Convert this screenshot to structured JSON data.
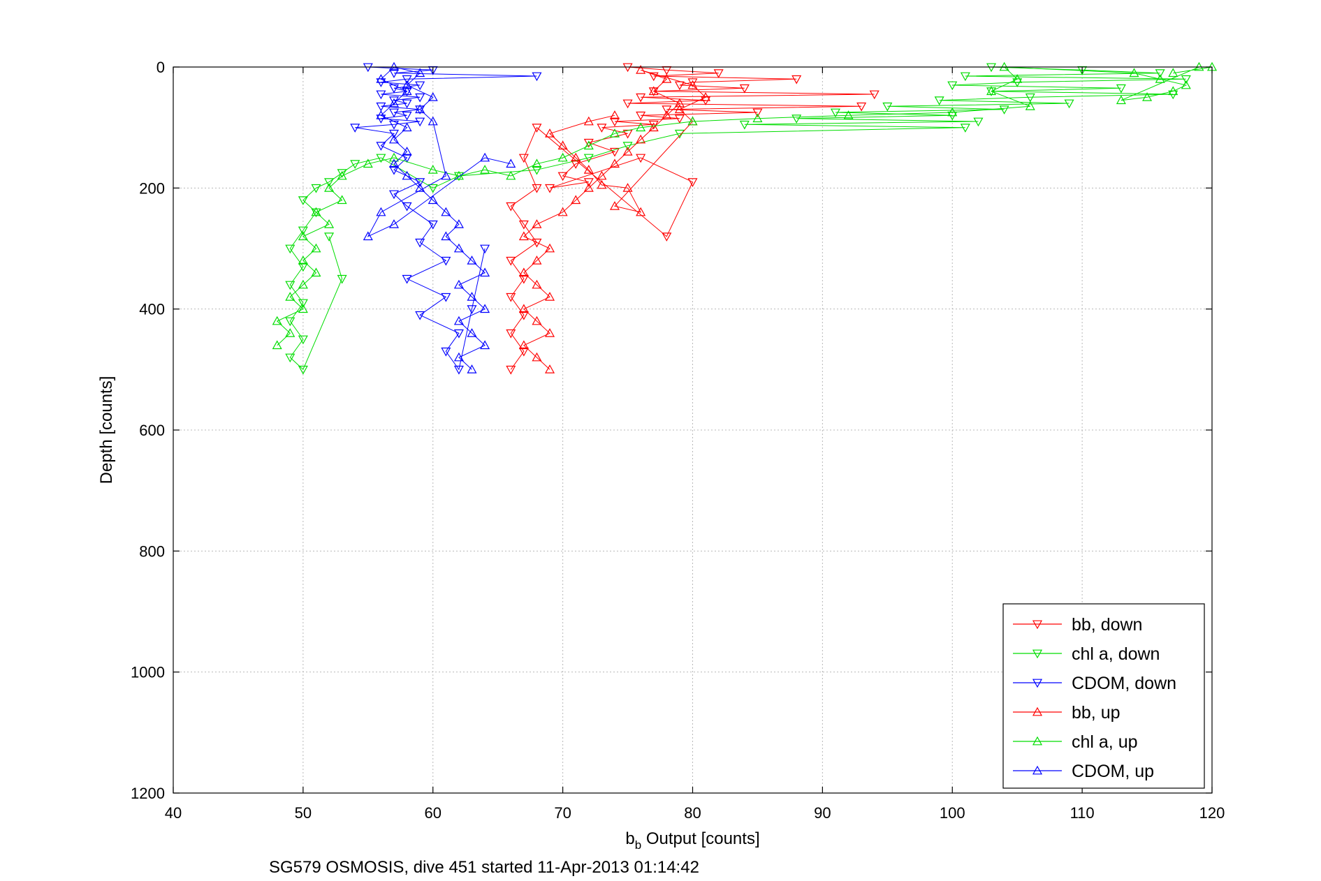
{
  "chart_data": {
    "type": "scatter",
    "title": "",
    "xlabel_main": "b",
    "xlabel_sub": "b",
    "xlabel_rest": " Output [counts]",
    "ylabel": "Depth [counts]",
    "caption": "SG579 OSMOSIS, dive 451 started 11-Apr-2013 01:14:42",
    "xlim": [
      40,
      120
    ],
    "ylim": [
      0,
      1200
    ],
    "y_reversed": true,
    "grid": true,
    "legend_position": "bottom-right",
    "x_ticks": [
      "40",
      "50",
      "60",
      "70",
      "80",
      "90",
      "100",
      "110",
      "120"
    ],
    "y_ticks": [
      "0",
      "200",
      "400",
      "600",
      "800",
      "1000",
      "1200"
    ],
    "series": [
      {
        "name": "bb, down",
        "color": "#ff0000",
        "marker": "triangle-down",
        "line": true,
        "points": [
          [
            75,
            0
          ],
          [
            78,
            5
          ],
          [
            82,
            10
          ],
          [
            77,
            15
          ],
          [
            88,
            20
          ],
          [
            80,
            25
          ],
          [
            79,
            30
          ],
          [
            84,
            35
          ],
          [
            77,
            40
          ],
          [
            94,
            45
          ],
          [
            76,
            50
          ],
          [
            81,
            55
          ],
          [
            75,
            60
          ],
          [
            93,
            65
          ],
          [
            78,
            70
          ],
          [
            85,
            75
          ],
          [
            76,
            80
          ],
          [
            79,
            85
          ],
          [
            74,
            90
          ],
          [
            77,
            95
          ],
          [
            73,
            100
          ],
          [
            75,
            110
          ],
          [
            72,
            125
          ],
          [
            74,
            140
          ],
          [
            71,
            160
          ],
          [
            70,
            180
          ],
          [
            72,
            190
          ],
          [
            69,
            200
          ],
          [
            76,
            150
          ],
          [
            80,
            190
          ],
          [
            78,
            280
          ],
          [
            68,
            100
          ],
          [
            67,
            150
          ],
          [
            68,
            200
          ],
          [
            66,
            230
          ],
          [
            67,
            260
          ],
          [
            68,
            290
          ],
          [
            66,
            320
          ],
          [
            67,
            350
          ],
          [
            66,
            380
          ],
          [
            67,
            410
          ],
          [
            66,
            440
          ],
          [
            67,
            470
          ],
          [
            66,
            500
          ]
        ]
      },
      {
        "name": "chl a, down",
        "color": "#00dd00",
        "marker": "triangle-down",
        "line": true,
        "points": [
          [
            103,
            0
          ],
          [
            110,
            5
          ],
          [
            116,
            10
          ],
          [
            101,
            15
          ],
          [
            118,
            20
          ],
          [
            105,
            25
          ],
          [
            100,
            30
          ],
          [
            113,
            35
          ],
          [
            103,
            40
          ],
          [
            117,
            45
          ],
          [
            106,
            50
          ],
          [
            99,
            55
          ],
          [
            109,
            60
          ],
          [
            95,
            65
          ],
          [
            104,
            70
          ],
          [
            91,
            75
          ],
          [
            100,
            80
          ],
          [
            88,
            85
          ],
          [
            102,
            90
          ],
          [
            84,
            95
          ],
          [
            101,
            100
          ],
          [
            79,
            110
          ],
          [
            75,
            130
          ],
          [
            72,
            150
          ],
          [
            68,
            170
          ],
          [
            62,
            180
          ],
          [
            60,
            200
          ],
          [
            56,
            150
          ],
          [
            54,
            160
          ],
          [
            53,
            175
          ],
          [
            52,
            190
          ],
          [
            51,
            200
          ],
          [
            50,
            220
          ],
          [
            51,
            240
          ],
          [
            50,
            270
          ],
          [
            49,
            300
          ],
          [
            50,
            330
          ],
          [
            49,
            360
          ],
          [
            50,
            390
          ],
          [
            49,
            420
          ],
          [
            50,
            450
          ],
          [
            49,
            480
          ],
          [
            50,
            500
          ],
          [
            53,
            350
          ],
          [
            52,
            280
          ]
        ]
      },
      {
        "name": "CDOM, down",
        "color": "#0000ff",
        "marker": "triangle-down",
        "line": true,
        "points": [
          [
            55,
            0
          ],
          [
            60,
            5
          ],
          [
            57,
            10
          ],
          [
            68,
            15
          ],
          [
            58,
            20
          ],
          [
            56,
            25
          ],
          [
            59,
            30
          ],
          [
            57,
            35
          ],
          [
            58,
            40
          ],
          [
            56,
            45
          ],
          [
            59,
            50
          ],
          [
            57,
            55
          ],
          [
            58,
            60
          ],
          [
            56,
            65
          ],
          [
            59,
            70
          ],
          [
            57,
            75
          ],
          [
            58,
            80
          ],
          [
            56,
            85
          ],
          [
            59,
            90
          ],
          [
            57,
            95
          ],
          [
            54,
            100
          ],
          [
            57,
            110
          ],
          [
            56,
            130
          ],
          [
            58,
            150
          ],
          [
            57,
            170
          ],
          [
            59,
            190
          ],
          [
            57,
            210
          ],
          [
            58,
            230
          ],
          [
            60,
            260
          ],
          [
            59,
            290
          ],
          [
            61,
            320
          ],
          [
            58,
            350
          ],
          [
            61,
            380
          ],
          [
            59,
            410
          ],
          [
            62,
            440
          ],
          [
            61,
            470
          ],
          [
            62,
            500
          ],
          [
            64,
            300
          ],
          [
            63,
            400
          ]
        ]
      },
      {
        "name": "bb, up",
        "color": "#ff0000",
        "marker": "triangle-up",
        "line": true,
        "points": [
          [
            69,
            500
          ],
          [
            68,
            480
          ],
          [
            67,
            460
          ],
          [
            69,
            440
          ],
          [
            68,
            420
          ],
          [
            67,
            400
          ],
          [
            69,
            380
          ],
          [
            68,
            360
          ],
          [
            67,
            340
          ],
          [
            68,
            320
          ],
          [
            69,
            300
          ],
          [
            67,
            280
          ],
          [
            68,
            260
          ],
          [
            70,
            240
          ],
          [
            71,
            220
          ],
          [
            72,
            200
          ],
          [
            73,
            180
          ],
          [
            74,
            160
          ],
          [
            75,
            140
          ],
          [
            76,
            120
          ],
          [
            77,
            100
          ],
          [
            78,
            80
          ],
          [
            79,
            60
          ],
          [
            77,
            40
          ],
          [
            78,
            20
          ],
          [
            76,
            5
          ],
          [
            80,
            30
          ],
          [
            81,
            50
          ],
          [
            79,
            70
          ],
          [
            80,
            90
          ],
          [
            74,
            230
          ],
          [
            76,
            240
          ],
          [
            75,
            200
          ],
          [
            73,
            195
          ],
          [
            72,
            170
          ],
          [
            71,
            150
          ],
          [
            70,
            130
          ],
          [
            69,
            110
          ],
          [
            72,
            90
          ],
          [
            74,
            80
          ]
        ]
      },
      {
        "name": "chl a, up",
        "color": "#00dd00",
        "marker": "triangle-up",
        "line": true,
        "points": [
          [
            48,
            460
          ],
          [
            49,
            440
          ],
          [
            48,
            420
          ],
          [
            50,
            400
          ],
          [
            49,
            380
          ],
          [
            50,
            360
          ],
          [
            51,
            340
          ],
          [
            50,
            320
          ],
          [
            51,
            300
          ],
          [
            50,
            280
          ],
          [
            52,
            260
          ],
          [
            51,
            240
          ],
          [
            53,
            220
          ],
          [
            52,
            200
          ],
          [
            53,
            180
          ],
          [
            55,
            160
          ],
          [
            57,
            150
          ],
          [
            60,
            170
          ],
          [
            62,
            180
          ],
          [
            64,
            170
          ],
          [
            66,
            180
          ],
          [
            68,
            160
          ],
          [
            70,
            150
          ],
          [
            72,
            130
          ],
          [
            74,
            110
          ],
          [
            76,
            100
          ],
          [
            80,
            90
          ],
          [
            85,
            85
          ],
          [
            92,
            80
          ],
          [
            100,
            75
          ],
          [
            106,
            65
          ],
          [
            103,
            40
          ],
          [
            105,
            20
          ],
          [
            104,
            0
          ],
          [
            114,
            10
          ],
          [
            116,
            20
          ],
          [
            118,
            30
          ],
          [
            117,
            40
          ],
          [
            115,
            50
          ],
          [
            113,
            55
          ],
          [
            119,
            0
          ],
          [
            120,
            0
          ],
          [
            117,
            10
          ]
        ]
      },
      {
        "name": "CDOM, up",
        "color": "#0000ff",
        "marker": "triangle-up",
        "line": true,
        "points": [
          [
            63,
            500
          ],
          [
            62,
            480
          ],
          [
            64,
            460
          ],
          [
            63,
            440
          ],
          [
            62,
            420
          ],
          [
            64,
            400
          ],
          [
            63,
            380
          ],
          [
            62,
            360
          ],
          [
            64,
            340
          ],
          [
            63,
            320
          ],
          [
            62,
            300
          ],
          [
            61,
            280
          ],
          [
            62,
            260
          ],
          [
            61,
            240
          ],
          [
            60,
            220
          ],
          [
            59,
            200
          ],
          [
            58,
            180
          ],
          [
            57,
            160
          ],
          [
            58,
            140
          ],
          [
            57,
            120
          ],
          [
            58,
            100
          ],
          [
            56,
            80
          ],
          [
            57,
            60
          ],
          [
            58,
            40
          ],
          [
            56,
            20
          ],
          [
            57,
            0
          ],
          [
            59,
            10
          ],
          [
            58,
            30
          ],
          [
            60,
            50
          ],
          [
            59,
            70
          ],
          [
            60,
            90
          ],
          [
            61,
            180
          ],
          [
            56,
            240
          ],
          [
            55,
            280
          ],
          [
            57,
            260
          ],
          [
            64,
            150
          ],
          [
            66,
            160
          ]
        ]
      }
    ]
  }
}
